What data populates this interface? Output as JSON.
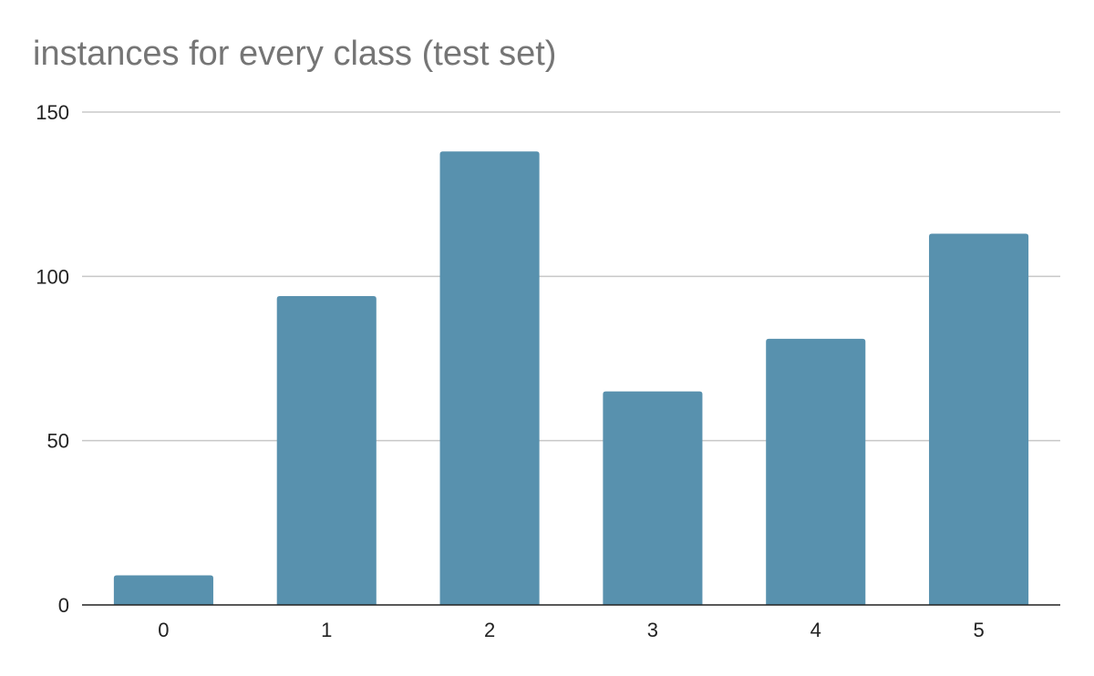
{
  "chart_data": {
    "type": "bar",
    "title": "instances for every class (test set)",
    "xlabel": "",
    "ylabel": "",
    "categories": [
      "0",
      "1",
      "2",
      "3",
      "4",
      "5"
    ],
    "values": [
      9,
      94,
      138,
      65,
      81,
      113
    ],
    "ylim": [
      0,
      150
    ],
    "yticks": [
      0,
      50,
      100,
      150
    ],
    "grid": true,
    "legend": "none",
    "bar_color": "#5891ae"
  }
}
